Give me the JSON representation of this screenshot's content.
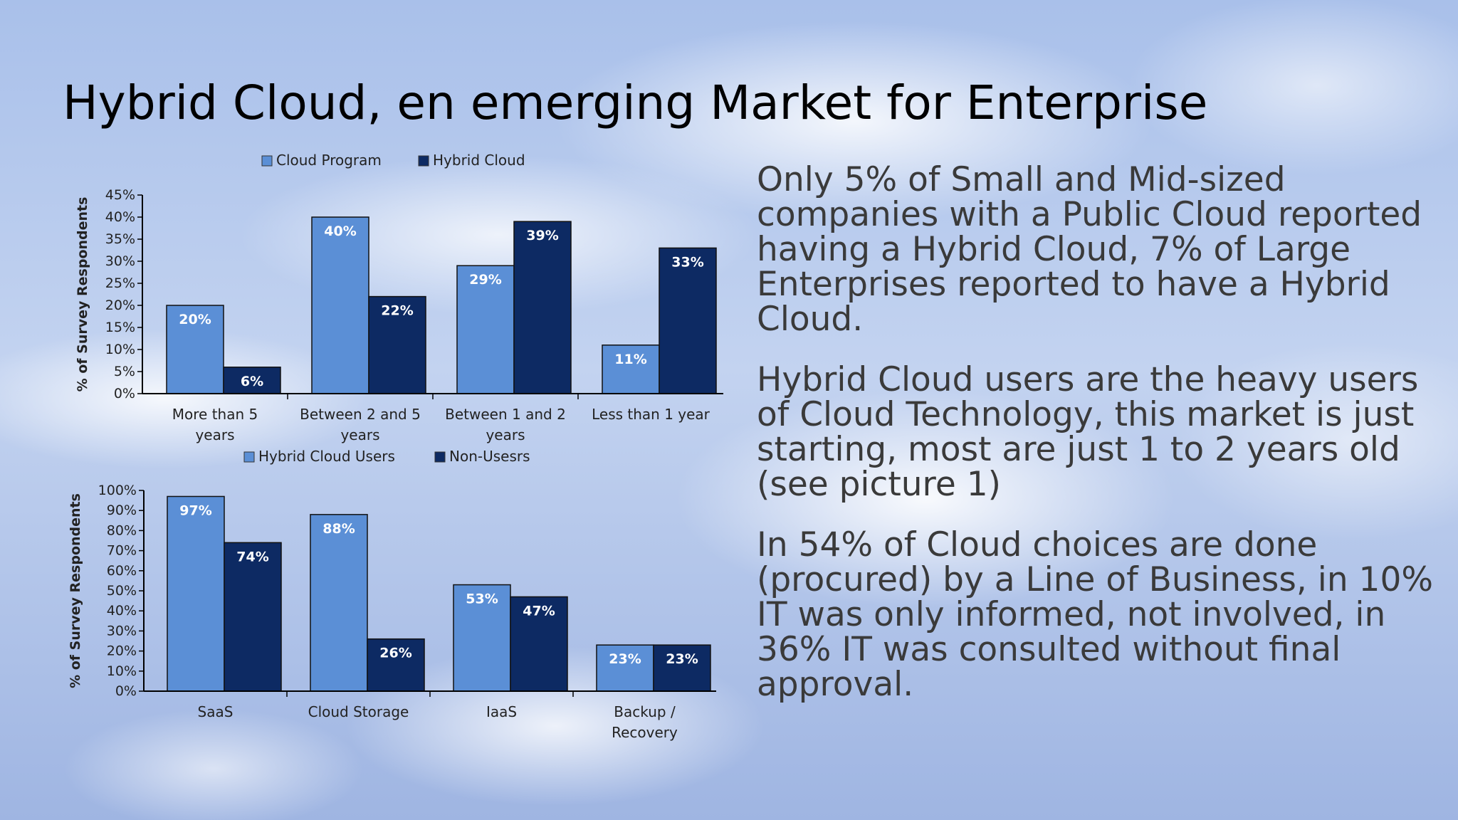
{
  "slide": {
    "title": "Hybrid Cloud, en emerging Market for Enterprise",
    "paragraphs": [
      "Only 5% of Small and Mid-sized companies with a Public Cloud reported having a Hybrid Cloud, 7% of Large Enterprises reported to have a Hybrid Cloud.",
      "Hybrid Cloud users are the heavy users of Cloud Technology, this market is just starting, most are just 1 to 2 years old (see picture 1)",
      "In 54% of Cloud choices are done (procured) by a Line of Business, in 10% IT was only informed, not involved, in 36% IT was consulted without final approval."
    ]
  },
  "chart_data": [
    {
      "type": "bar",
      "categories": [
        [
          "More than 5",
          "years"
        ],
        [
          "Between 2 and 5",
          "years"
        ],
        [
          "Between 1 and 2",
          "years"
        ],
        [
          "Less than 1 year"
        ]
      ],
      "series": [
        {
          "name": "Cloud Program",
          "values": [
            20,
            40,
            29,
            11
          ],
          "color": "#5b8fd6"
        },
        {
          "name": "Hybrid Cloud",
          "values": [
            6,
            22,
            39,
            33
          ],
          "color": "#0d2a63"
        }
      ],
      "ylabel": "% of Survey Respondents",
      "ylim": [
        0,
        45
      ],
      "yticks": [
        0,
        5,
        10,
        15,
        20,
        25,
        30,
        35,
        40,
        45
      ],
      "value_suffix": "%",
      "legend": "top"
    },
    {
      "type": "bar",
      "categories": [
        [
          "SaaS"
        ],
        [
          "Cloud Storage"
        ],
        [
          "IaaS"
        ],
        [
          "Backup /",
          "Recovery"
        ]
      ],
      "series": [
        {
          "name": "Hybrid Cloud Users",
          "values": [
            97,
            88,
            53,
            23
          ],
          "color": "#5b8fd6"
        },
        {
          "name": "Non-Usesrs",
          "values": [
            74,
            26,
            47,
            23
          ],
          "color": "#0d2a63"
        }
      ],
      "ylabel": "% of Survey Respondents",
      "ylim": [
        0,
        100
      ],
      "yticks": [
        0,
        10,
        20,
        30,
        40,
        50,
        60,
        70,
        80,
        90,
        100
      ],
      "value_suffix": "%",
      "legend": "top"
    }
  ]
}
